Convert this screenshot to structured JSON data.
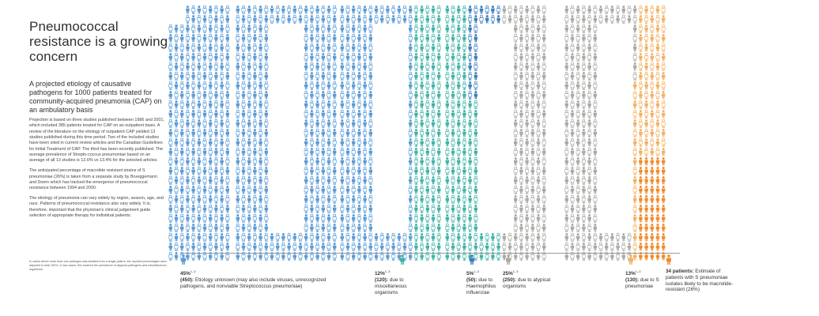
{
  "title": "Pneumococcal resistance is a growing concern",
  "subtitle": "A projected etiology of causative pathogens for 1000 patients treated for community-acquired pneumonia (CAP) on an ambulatory basis",
  "paragraphs": [
    "Projection is based on three studies published between 1986 and 2001, which included 385 patients treated for CAP on an outpatient basis. A review of the literature on the etiology of outpatient CAP yielded 13 studies published during this time period. Two of the included studies have been sited in current review articles and the Canadian Guidelines for Initial Treatment of CAP. The third has been recently published. The average prevalence of Strepto-coccus pneumoniae based on an average of all 13 studies is 12.6% vs 13.4% for the selected articles.",
    "The anticipated percentage of macrolide resistant strains of S pneumoniae (26%) is taken from a separate study by Brueggemann and Doern which has tracked the emergence of pneumococcal resistance between 1994 and 2000.",
    "The etiology of pneumonia can vary widely by region, season, age, and race. Patterns of pneumococcal resistance also vary widely. It is, therefore, important that the physician's clinical judgement guide selection of appropriate therapy for individual patients."
  ],
  "footnote": "In cases where more than one pathogen was isolated from a single patient, the reported percentages were adjusted to total 100%. In two cases, this lowered the prevalence of atypical pathogens and miscellaneous organisms.",
  "colors": {
    "unknown": "#5b9bd5",
    "miscellaneous": "#3fb3a8",
    "haemophilus": "#3d7fc0",
    "atypical": "#a8aaa6",
    "pneumoniae": "#f2b163",
    "resistant": "#ef8b2c"
  },
  "legend": [
    {
      "pct": "45%",
      "sup": "1–3",
      "count": "(450):",
      "text": "Etiology unknown (may also include viruses, unrecognized pathogens, and nonviable Streptococcus pneumoniae)",
      "color_key": "unknown"
    },
    {
      "pct": "12%",
      "sup": "1–3",
      "count": "(120):",
      "text": "due to miscellaneous organisms",
      "color_key": "miscellaneous"
    },
    {
      "pct": "5%",
      "sup": "1–3",
      "count": "(50):",
      "text": "due to Haemophilus influenzae",
      "color_key": "haemophilus"
    },
    {
      "pct": "25%",
      "sup": "1–3",
      "count": "(250):",
      "text": "due to atypical organisms",
      "color_key": "atypical"
    },
    {
      "pct": "13%",
      "sup": "1–3",
      "count": "(130):",
      "text": "due to S pneumoniae",
      "color_key": "pneumoniae"
    },
    {
      "pct": "",
      "sup": "",
      "count": "34 patients:",
      "text": "Estimate of patients with S pneumoniae isolates likely to be macrolide-resistant (26%)",
      "color_key": "resistant"
    }
  ]
}
